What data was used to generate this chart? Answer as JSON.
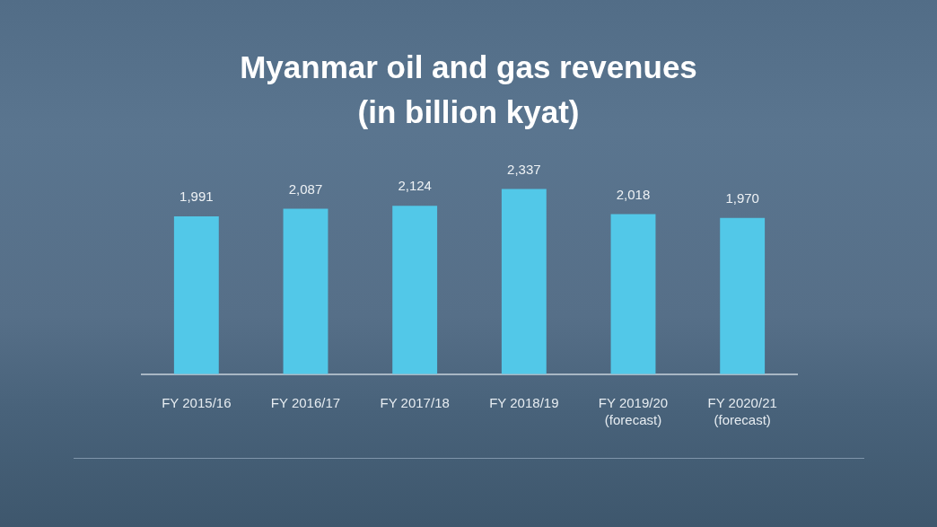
{
  "chart_data": {
    "type": "bar",
    "title": "Myanmar oil and gas revenues (in billion kyat)",
    "categories": [
      "FY 2015/16",
      "FY 2016/17",
      "FY 2017/18",
      "FY 2018/19",
      "FY 2019/20\n(forecast)",
      "FY 2020/21\n(forecast)"
    ],
    "values": [
      1991,
      2087,
      2124,
      2337,
      2018,
      1970
    ],
    "color": "#52c8e8",
    "value_labels": [
      "1,991",
      "2,087",
      "2,124",
      "2,337",
      "2,018",
      "1,970"
    ],
    "tick_labels": "x"
  }
}
